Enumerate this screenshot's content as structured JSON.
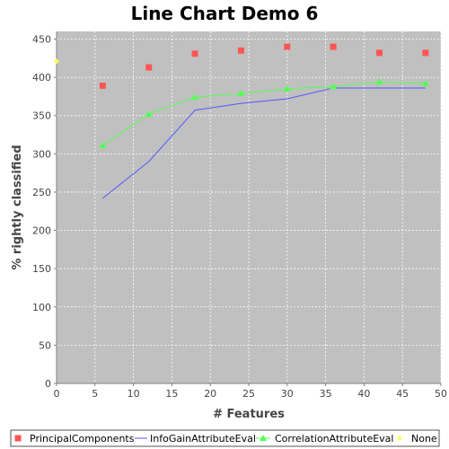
{
  "chart_data": {
    "type": "line",
    "title": "Line Chart Demo 6",
    "xlabel": "# Features",
    "ylabel": "% rightly classified",
    "xlim": [
      0,
      50
    ],
    "ylim": [
      0,
      460
    ],
    "xticks": [
      0,
      5,
      10,
      15,
      20,
      25,
      30,
      35,
      40,
      45,
      50
    ],
    "yticks": [
      0,
      50,
      100,
      150,
      200,
      250,
      300,
      350,
      400,
      450
    ],
    "grid": true,
    "legend_position": "bottom",
    "plot_background": "#c0c0c0",
    "series": [
      {
        "name": "PrincipalComponents",
        "style": "markers",
        "marker": "square",
        "color": "#ff5555",
        "x": [
          6,
          12,
          18,
          24,
          30,
          36,
          42,
          48
        ],
        "y": [
          389,
          413,
          431,
          435,
          440,
          440,
          432,
          432
        ]
      },
      {
        "name": "InfoGainAttributeEval",
        "style": "line",
        "marker": "none",
        "color": "#5555ff",
        "x": [
          6,
          12,
          18,
          24,
          30,
          36,
          42,
          48
        ],
        "y": [
          242,
          290,
          357,
          366,
          372,
          386,
          386,
          386
        ]
      },
      {
        "name": "CorrelationAttributeEval",
        "style": "line+markers",
        "marker": "triangle",
        "color": "#55ff55",
        "x": [
          6,
          12,
          18,
          24,
          30,
          36,
          42,
          48
        ],
        "y": [
          311,
          352,
          374,
          379,
          385,
          388,
          394,
          392
        ]
      },
      {
        "name": "None",
        "style": "markers",
        "marker": "diamond",
        "color": "#ffff55",
        "x": [
          0
        ],
        "y": [
          421
        ]
      }
    ]
  }
}
